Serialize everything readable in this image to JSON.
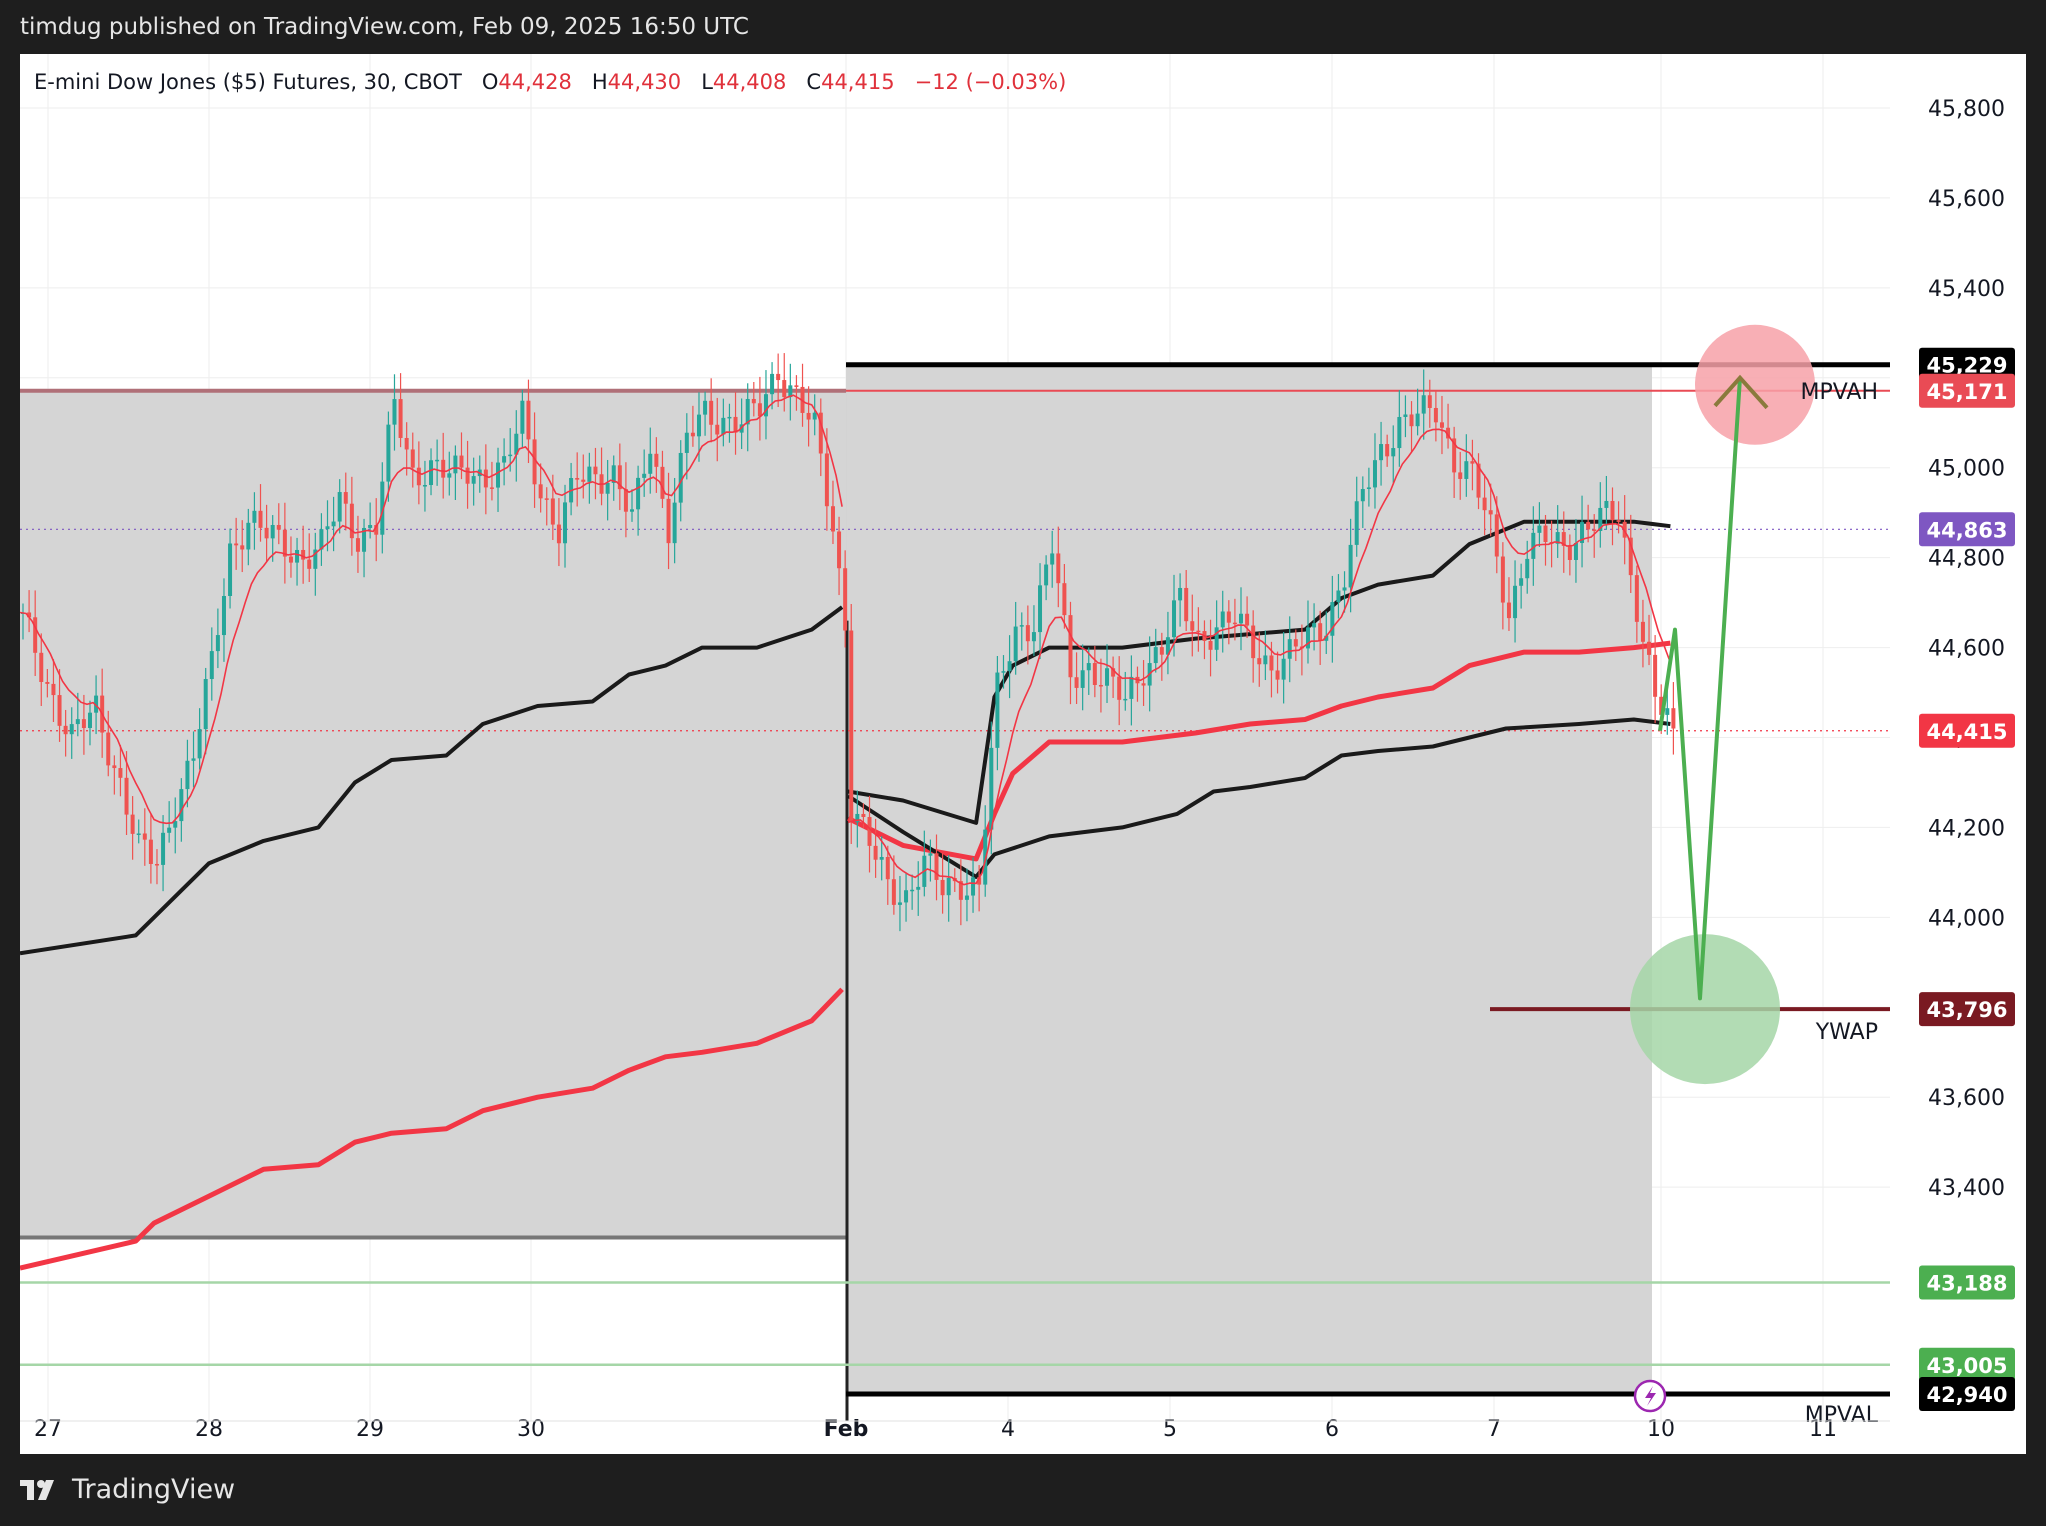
{
  "header": {
    "published_text": "timdug published on TradingView.com, Feb 09, 2025 16:50 UTC"
  },
  "legend": {
    "symbol": "E-mini Dow Jones ($5) Futures, 30, CBOT",
    "open_label": "O",
    "open": "44,428",
    "high_label": "H",
    "high": "44,430",
    "low_label": "L",
    "low": "44,408",
    "close_label": "C",
    "close": "44,415",
    "change": "−12 (−0.03%)"
  },
  "footer": {
    "brand": "TradingView"
  },
  "colors": {
    "black_level": "#000000",
    "mpvah": "#e94b55",
    "dotted_purple": "#7e57c2",
    "current": "#f23645",
    "ywap": "#7a1a22",
    "green_levels": "#4caf50",
    "vwap_black": "#1a1a1a",
    "vwap_red": "#f23645",
    "zone_fill": "#d3d3d3",
    "arrow_green": "#4caf50",
    "target_circle": "#f7a1a8",
    "entry_circle": "#a5d6a7",
    "candle_up": "#26a69a",
    "candle_down": "#ef5350"
  },
  "chart_data": {
    "type": "candlestick",
    "title": "E-mini Dow Jones ($5) Futures, 30, CBOT",
    "y_axis": {
      "ticks": [
        "45,800",
        "45,600",
        "45,400",
        "45,200",
        "45,000",
        "44,800",
        "44,600",
        "44,400",
        "44,200",
        "44,000",
        "43,800",
        "43,600",
        "43,400"
      ],
      "ylim": [
        42880,
        45920
      ]
    },
    "x_axis": {
      "ticks": [
        "27",
        "28",
        "29",
        "30",
        "Feb",
        "4",
        "5",
        "6",
        "7",
        "10",
        "11"
      ]
    },
    "price_levels": [
      {
        "name": "",
        "value": 45229,
        "tag": "45,229",
        "color": "#000000"
      },
      {
        "name": "MPVAH",
        "value": 45171,
        "tag": "45,171",
        "color": "#e94b55"
      },
      {
        "name": "",
        "value": 44863,
        "tag": "44,863",
        "color": "#7e57c2"
      },
      {
        "name": "",
        "value": 44415,
        "tag": "44,415",
        "color": "#f23645"
      },
      {
        "name": "YWAP",
        "value": 43796,
        "tag": "43,796",
        "color": "#7a1a22"
      },
      {
        "name": "",
        "value": 43188,
        "tag": "43,188",
        "color": "#4caf50"
      },
      {
        "name": "",
        "value": 43005,
        "tag": "43,005",
        "color": "#4caf50"
      },
      {
        "name": "MPVAL",
        "value": 42940,
        "tag": "42,940",
        "color": "#000000"
      }
    ],
    "close_path": [
      [
        0,
        44660
      ],
      [
        4,
        44520
      ],
      [
        8,
        44400
      ],
      [
        12,
        44460
      ],
      [
        16,
        44300
      ],
      [
        19,
        44150
      ],
      [
        22,
        44120
      ],
      [
        25,
        44260
      ],
      [
        28,
        44360
      ],
      [
        31,
        44560
      ],
      [
        34,
        44820
      ],
      [
        37,
        44880
      ],
      [
        40,
        44850
      ],
      [
        43,
        44830
      ],
      [
        46,
        44800
      ],
      [
        49,
        44820
      ],
      [
        52,
        44930
      ],
      [
        55,
        44850
      ],
      [
        58,
        44870
      ],
      [
        61,
        45140
      ],
      [
        64,
        44990
      ],
      [
        67,
        45000
      ],
      [
        70,
        44980
      ],
      [
        73,
        45000
      ],
      [
        76,
        44980
      ],
      [
        79,
        44990
      ],
      [
        82,
        45120
      ],
      [
        85,
        44950
      ],
      [
        88,
        44850
      ],
      [
        91,
        44980
      ],
      [
        94,
        44990
      ],
      [
        97,
        44980
      ],
      [
        100,
        44880
      ],
      [
        103,
        45060
      ],
      [
        106,
        44870
      ],
      [
        109,
        45060
      ],
      [
        112,
        45120
      ],
      [
        115,
        45110
      ],
      [
        118,
        45100
      ],
      [
        121,
        45130
      ],
      [
        124,
        45220
      ],
      [
        127,
        45160
      ],
      [
        130,
        45080
      ],
      [
        133,
        44870
      ],
      [
        135,
        44660
      ],
      [
        136,
        44250
      ],
      [
        139,
        44160
      ],
      [
        142,
        44070
      ],
      [
        145,
        44050
      ],
      [
        148,
        44120
      ],
      [
        151,
        44060
      ],
      [
        154,
        44080
      ],
      [
        157,
        44070
      ],
      [
        160,
        44500
      ],
      [
        163,
        44640
      ],
      [
        166,
        44660
      ],
      [
        169,
        44820
      ],
      [
        172,
        44540
      ],
      [
        175,
        44560
      ],
      [
        178,
        44520
      ],
      [
        181,
        44480
      ],
      [
        184,
        44560
      ],
      [
        187,
        44600
      ],
      [
        190,
        44700
      ],
      [
        193,
        44620
      ],
      [
        196,
        44650
      ],
      [
        199,
        44660
      ],
      [
        202,
        44600
      ],
      [
        205,
        44560
      ],
      [
        208,
        44580
      ],
      [
        211,
        44620
      ],
      [
        214,
        44660
      ],
      [
        217,
        44760
      ],
      [
        220,
        44940
      ],
      [
        223,
        45040
      ],
      [
        226,
        45100
      ],
      [
        229,
        45110
      ],
      [
        232,
        45130
      ],
      [
        235,
        45020
      ],
      [
        238,
        44980
      ],
      [
        241,
        44860
      ],
      [
        244,
        44680
      ],
      [
        247,
        44820
      ],
      [
        250,
        44840
      ],
      [
        253,
        44830
      ],
      [
        256,
        44860
      ],
      [
        259,
        44880
      ],
      [
        262,
        44900
      ],
      [
        265,
        44700
      ],
      [
        268,
        44480
      ],
      [
        271,
        44420
      ]
    ],
    "series": [
      {
        "name": "",
        "color": "#1a1a1a",
        "points": [
          [
            0,
            43920
          ],
          [
            19,
            43960
          ],
          [
            22,
            44000
          ],
          [
            31,
            44120
          ],
          [
            40,
            44170
          ],
          [
            49,
            44200
          ],
          [
            55,
            44300
          ],
          [
            61,
            44350
          ],
          [
            70,
            44360
          ],
          [
            76,
            44430
          ],
          [
            85,
            44470
          ],
          [
            94,
            44480
          ],
          [
            100,
            44540
          ],
          [
            106,
            44560
          ],
          [
            112,
            44600
          ],
          [
            121,
            44600
          ],
          [
            130,
            44640
          ],
          [
            135,
            44690
          ]
        ]
      },
      {
        "name": "",
        "color": "#f23645",
        "points": [
          [
            0,
            43220
          ],
          [
            19,
            43280
          ],
          [
            22,
            43320
          ],
          [
            31,
            43380
          ],
          [
            40,
            43440
          ],
          [
            49,
            43450
          ],
          [
            55,
            43500
          ],
          [
            61,
            43520
          ],
          [
            70,
            43530
          ],
          [
            76,
            43570
          ],
          [
            85,
            43600
          ],
          [
            94,
            43620
          ],
          [
            100,
            43660
          ],
          [
            106,
            43690
          ],
          [
            112,
            43700
          ],
          [
            121,
            43720
          ],
          [
            130,
            43770
          ],
          [
            135,
            43840
          ]
        ]
      },
      {
        "name": "",
        "color": "#1a1a1a",
        "points": [
          [
            136,
            44280
          ],
          [
            145,
            44260
          ],
          [
            157,
            44210
          ],
          [
            160,
            44490
          ],
          [
            163,
            44560
          ],
          [
            169,
            44600
          ],
          [
            181,
            44600
          ],
          [
            193,
            44620
          ],
          [
            202,
            44630
          ],
          [
            211,
            44640
          ],
          [
            217,
            44710
          ],
          [
            223,
            44740
          ],
          [
            232,
            44760
          ],
          [
            238,
            44830
          ],
          [
            247,
            44880
          ],
          [
            256,
            44880
          ],
          [
            265,
            44880
          ],
          [
            271,
            44870
          ]
        ]
      },
      {
        "name": "",
        "color": "#f23645",
        "points": [
          [
            136,
            44220
          ],
          [
            145,
            44160
          ],
          [
            157,
            44130
          ],
          [
            160,
            44230
          ],
          [
            163,
            44320
          ],
          [
            169,
            44390
          ],
          [
            181,
            44390
          ],
          [
            193,
            44410
          ],
          [
            202,
            44430
          ],
          [
            211,
            44440
          ],
          [
            217,
            44470
          ],
          [
            223,
            44490
          ],
          [
            232,
            44510
          ],
          [
            238,
            44560
          ],
          [
            247,
            44590
          ],
          [
            256,
            44590
          ],
          [
            265,
            44600
          ],
          [
            271,
            44610
          ]
        ]
      },
      {
        "name": "",
        "color": "#1a1a1a",
        "points": [
          [
            136,
            44270
          ],
          [
            145,
            44190
          ],
          [
            157,
            44090
          ],
          [
            160,
            44140
          ],
          [
            169,
            44180
          ],
          [
            181,
            44200
          ],
          [
            190,
            44230
          ],
          [
            196,
            44280
          ],
          [
            202,
            44290
          ],
          [
            211,
            44310
          ],
          [
            217,
            44360
          ],
          [
            223,
            44370
          ],
          [
            232,
            44380
          ],
          [
            238,
            44400
          ],
          [
            244,
            44420
          ],
          [
            256,
            44430
          ],
          [
            265,
            44440
          ],
          [
            271,
            44430
          ]
        ]
      }
    ],
    "value_area_boxes": [
      {
        "from_bar": 0,
        "to_bar": 135,
        "high": 45171,
        "low": 43288
      },
      {
        "from_bar": 135,
        "to_bar": 271,
        "high": 45229,
        "low": 42940
      }
    ],
    "scenario_arrow": [
      [
        273,
        44415
      ],
      [
        276,
        44640
      ],
      [
        281,
        43820
      ],
      [
        289,
        45200
      ]
    ],
    "target_zone": {
      "center_value": 45171,
      "color": "#f7a1a8"
    },
    "entry_zone": {
      "center_value": 43796,
      "color": "#a5d6a7"
    },
    "grid": true,
    "legend_position": "top-left"
  }
}
